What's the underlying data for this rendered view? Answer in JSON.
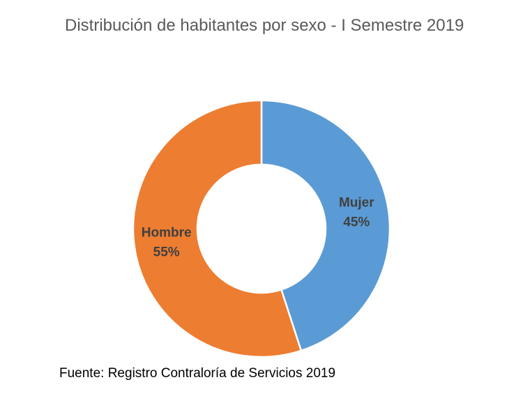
{
  "chart_data": {
    "type": "pie",
    "variant": "donut",
    "title": "Distribución de habitantes por sexo - I Semestre 2019",
    "categories": [
      "Mujer",
      "Hombre"
    ],
    "values": [
      45,
      55
    ],
    "value_labels": [
      "45%",
      "55%"
    ],
    "colors": [
      "#5B9BD5",
      "#ED7D31"
    ],
    "start": "top",
    "direction": "clockwise",
    "legend": "none"
  },
  "footer": "Fuente: Registro Contraloría de Servicios 2019"
}
